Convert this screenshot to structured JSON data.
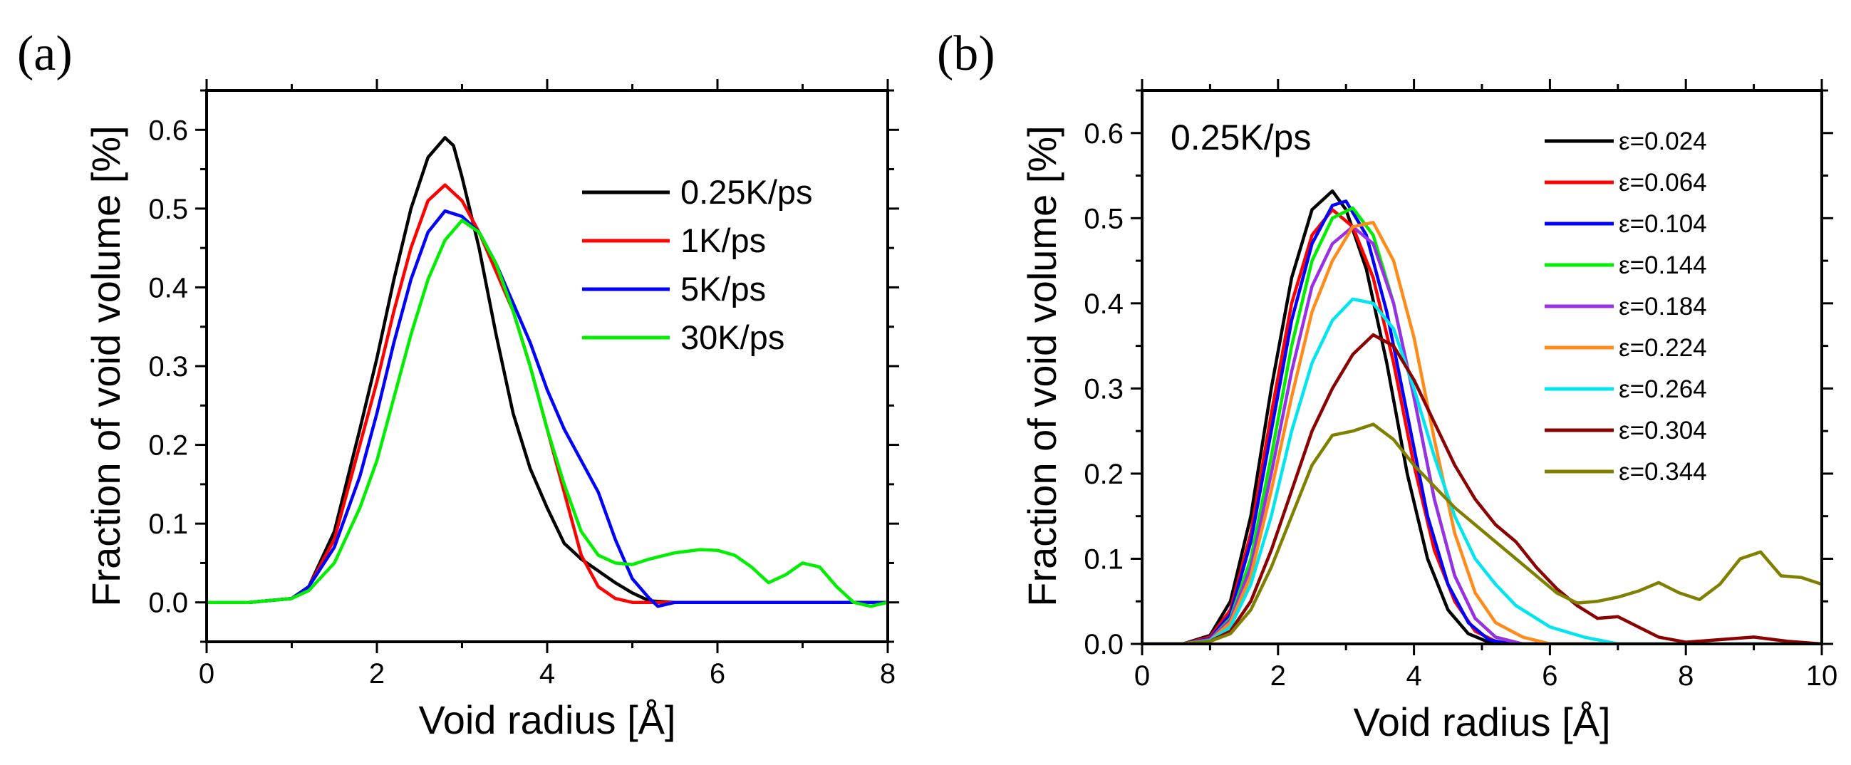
{
  "panels": [
    {
      "label": "(a)",
      "chart_data": {
        "type": "line",
        "title": "",
        "xlabel": "Void radius [Å]",
        "ylabel": "Fraction of void volume [%]",
        "xlim": [
          0,
          8
        ],
        "ylim": [
          -0.05,
          0.65
        ],
        "xticks": [
          0,
          2,
          4,
          6,
          8
        ],
        "yticks": [
          0.0,
          0.1,
          0.2,
          0.3,
          0.4,
          0.5,
          0.6
        ],
        "xtick_labels": [
          "0",
          "2",
          "4",
          "6",
          "8"
        ],
        "ytick_labels": [
          "0.0",
          "0.1",
          "0.2",
          "0.3",
          "0.4",
          "0.5",
          "0.6"
        ],
        "legend_position": "top-right",
        "series": [
          {
            "name": "0.25K/ps",
            "color": "#000000",
            "x": [
              0,
              0.5,
              1.0,
              1.2,
              1.5,
              1.8,
              2.0,
              2.2,
              2.4,
              2.6,
              2.8,
              2.9,
              3.0,
              3.2,
              3.4,
              3.6,
              3.8,
              4.0,
              4.2,
              4.4,
              4.6,
              4.8,
              5.0,
              5.2,
              5.5,
              6,
              7,
              8
            ],
            "y": [
              0,
              0,
              0.005,
              0.02,
              0.09,
              0.22,
              0.31,
              0.41,
              0.5,
              0.565,
              0.59,
              0.58,
              0.54,
              0.45,
              0.34,
              0.24,
              0.17,
              0.12,
              0.075,
              0.055,
              0.04,
              0.025,
              0.012,
              0.002,
              0,
              0,
              0,
              0
            ]
          },
          {
            "name": "1K/ps",
            "color": "#ff0000",
            "x": [
              0,
              0.5,
              1.0,
              1.2,
              1.5,
              1.8,
              2.0,
              2.2,
              2.4,
              2.6,
              2.8,
              3.0,
              3.2,
              3.4,
              3.6,
              3.8,
              4.0,
              4.2,
              4.4,
              4.6,
              4.8,
              5.0,
              5.2,
              5.5,
              6,
              7,
              8
            ],
            "y": [
              0,
              0,
              0.005,
              0.02,
              0.08,
              0.2,
              0.28,
              0.37,
              0.45,
              0.51,
              0.53,
              0.51,
              0.47,
              0.42,
              0.37,
              0.3,
              0.22,
              0.14,
              0.06,
              0.02,
              0.005,
              0,
              0,
              0,
              0,
              0,
              0
            ]
          },
          {
            "name": "5K/ps",
            "color": "#0000ff",
            "x": [
              0,
              0.5,
              1.0,
              1.2,
              1.5,
              1.8,
              2.0,
              2.2,
              2.4,
              2.6,
              2.8,
              3.0,
              3.2,
              3.4,
              3.6,
              3.8,
              4.0,
              4.2,
              4.4,
              4.6,
              4.8,
              5.0,
              5.2,
              5.3,
              5.5,
              6,
              7,
              8
            ],
            "y": [
              0,
              0,
              0.005,
              0.02,
              0.07,
              0.16,
              0.24,
              0.33,
              0.41,
              0.47,
              0.497,
              0.49,
              0.47,
              0.43,
              0.38,
              0.33,
              0.27,
              0.22,
              0.18,
              0.14,
              0.08,
              0.03,
              0.005,
              -0.005,
              0,
              0,
              0,
              0
            ]
          },
          {
            "name": "30K/ps",
            "color": "#00ee00",
            "x": [
              0,
              0.5,
              1.0,
              1.2,
              1.5,
              1.8,
              2.0,
              2.2,
              2.4,
              2.6,
              2.8,
              3.0,
              3.2,
              3.4,
              3.6,
              3.8,
              4.0,
              4.2,
              4.4,
              4.6,
              4.8,
              5.0,
              5.2,
              5.5,
              5.8,
              6.0,
              6.2,
              6.4,
              6.6,
              6.8,
              7.0,
              7.2,
              7.4,
              7.6,
              7.8,
              8.0
            ],
            "y": [
              0,
              0,
              0.005,
              0.015,
              0.05,
              0.12,
              0.18,
              0.26,
              0.34,
              0.41,
              0.46,
              0.485,
              0.47,
              0.43,
              0.37,
              0.3,
              0.22,
              0.15,
              0.09,
              0.06,
              0.05,
              0.048,
              0.055,
              0.063,
              0.067,
              0.066,
              0.06,
              0.045,
              0.025,
              0.035,
              0.05,
              0.045,
              0.02,
              0.0,
              -0.005,
              0
            ]
          }
        ]
      }
    },
    {
      "label": "(b)",
      "condition_label": "0.25K/ps",
      "chart_data": {
        "type": "line",
        "title": "",
        "xlabel": "Void radius [Å]",
        "ylabel": "Fraction of void volume [%]",
        "xlim": [
          0,
          10
        ],
        "ylim": [
          0,
          0.65
        ],
        "xticks": [
          0,
          2,
          4,
          6,
          8,
          10
        ],
        "yticks": [
          0.0,
          0.1,
          0.2,
          0.3,
          0.4,
          0.5,
          0.6
        ],
        "xtick_labels": [
          "0",
          "2",
          "4",
          "6",
          "8",
          "10"
        ],
        "ytick_labels": [
          "0.0",
          "0.1",
          "0.2",
          "0.3",
          "0.4",
          "0.5",
          "0.6"
        ],
        "legend_position": "top-right",
        "series": [
          {
            "name": "ε=0.024",
            "color": "#000000",
            "x": [
              0,
              0.6,
              1.0,
              1.3,
              1.6,
              1.9,
              2.2,
              2.5,
              2.8,
              3.0,
              3.3,
              3.6,
              3.9,
              4.2,
              4.5,
              4.8,
              5.1,
              5.4,
              10
            ],
            "y": [
              0,
              0,
              0.01,
              0.05,
              0.15,
              0.3,
              0.43,
              0.51,
              0.532,
              0.51,
              0.44,
              0.33,
              0.2,
              0.1,
              0.04,
              0.012,
              0.002,
              0,
              0
            ]
          },
          {
            "name": "ε=0.064",
            "color": "#ff0000",
            "x": [
              0,
              0.6,
              1.0,
              1.3,
              1.6,
              1.9,
              2.2,
              2.5,
              2.8,
              3.1,
              3.4,
              3.7,
              4.0,
              4.3,
              4.6,
              4.9,
              5.2,
              5.5,
              10
            ],
            "y": [
              0,
              0,
              0.008,
              0.04,
              0.13,
              0.27,
              0.4,
              0.48,
              0.51,
              0.49,
              0.43,
              0.33,
              0.21,
              0.11,
              0.05,
              0.015,
              0.003,
              0,
              0
            ]
          },
          {
            "name": "ε=0.104",
            "color": "#0000ff",
            "x": [
              0,
              0.6,
              1.0,
              1.3,
              1.6,
              1.9,
              2.2,
              2.5,
              2.8,
              3.0,
              3.3,
              3.6,
              3.9,
              4.2,
              4.5,
              4.8,
              5.1,
              5.4,
              10
            ],
            "y": [
              0,
              0,
              0.006,
              0.035,
              0.12,
              0.25,
              0.38,
              0.47,
              0.515,
              0.52,
              0.48,
              0.39,
              0.27,
              0.15,
              0.07,
              0.025,
              0.005,
              0,
              0
            ]
          },
          {
            "name": "ε=0.144",
            "color": "#00ee00",
            "x": [
              0,
              0.6,
              1.0,
              1.3,
              1.6,
              1.9,
              2.2,
              2.5,
              2.8,
              3.1,
              3.4,
              3.7,
              4.0,
              4.3,
              4.6,
              4.9,
              5.2,
              5.6,
              10
            ],
            "y": [
              0,
              0,
              0.005,
              0.03,
              0.1,
              0.22,
              0.35,
              0.45,
              0.5,
              0.512,
              0.48,
              0.4,
              0.29,
              0.17,
              0.08,
              0.03,
              0.008,
              0,
              0
            ]
          },
          {
            "name": "ε=0.184",
            "color": "#9a30e6",
            "x": [
              0,
              0.6,
              1.0,
              1.3,
              1.6,
              1.9,
              2.2,
              2.5,
              2.8,
              3.1,
              3.4,
              3.7,
              4.0,
              4.3,
              4.6,
              4.9,
              5.2,
              5.6,
              10
            ],
            "y": [
              0,
              0,
              0.005,
              0.028,
              0.09,
              0.2,
              0.32,
              0.42,
              0.47,
              0.49,
              0.47,
              0.4,
              0.29,
              0.17,
              0.08,
              0.03,
              0.008,
              0,
              0
            ]
          },
          {
            "name": "ε=0.224",
            "color": "#ff8c1a",
            "x": [
              0,
              0.6,
              1.0,
              1.3,
              1.6,
              1.9,
              2.2,
              2.5,
              2.8,
              3.1,
              3.4,
              3.7,
              4.0,
              4.3,
              4.6,
              4.9,
              5.2,
              5.6,
              6.0,
              10
            ],
            "y": [
              0,
              0,
              0.004,
              0.025,
              0.08,
              0.18,
              0.29,
              0.39,
              0.45,
              0.49,
              0.495,
              0.45,
              0.36,
              0.24,
              0.13,
              0.06,
              0.025,
              0.008,
              0,
              0
            ]
          },
          {
            "name": "ε=0.264",
            "color": "#00e5ee",
            "x": [
              0,
              0.6,
              1.0,
              1.3,
              1.6,
              1.9,
              2.2,
              2.5,
              2.8,
              3.1,
              3.4,
              3.7,
              4.0,
              4.3,
              4.6,
              4.9,
              5.2,
              5.5,
              6.0,
              6.5,
              7.0,
              10
            ],
            "y": [
              0,
              0,
              0.004,
              0.02,
              0.07,
              0.15,
              0.25,
              0.33,
              0.38,
              0.405,
              0.4,
              0.37,
              0.3,
              0.22,
              0.15,
              0.1,
              0.07,
              0.045,
              0.02,
              0.008,
              0,
              0
            ]
          },
          {
            "name": "ε=0.304",
            "color": "#8b0000",
            "x": [
              0,
              0.6,
              1.0,
              1.3,
              1.6,
              1.9,
              2.2,
              2.5,
              2.8,
              3.1,
              3.4,
              3.7,
              4.0,
              4.3,
              4.6,
              4.9,
              5.2,
              5.5,
              5.8,
              6.1,
              6.4,
              6.7,
              7.0,
              7.3,
              7.6,
              8.0,
              8.5,
              9.0,
              9.5,
              10
            ],
            "y": [
              0,
              0,
              0.003,
              0.015,
              0.05,
              0.11,
              0.18,
              0.25,
              0.3,
              0.34,
              0.363,
              0.35,
              0.31,
              0.26,
              0.21,
              0.17,
              0.14,
              0.12,
              0.09,
              0.065,
              0.045,
              0.03,
              0.032,
              0.02,
              0.008,
              0.002,
              0.005,
              0.008,
              0.003,
              0
            ]
          },
          {
            "name": "ε=0.344",
            "color": "#808000",
            "x": [
              0,
              0.6,
              1.0,
              1.3,
              1.6,
              1.9,
              2.2,
              2.5,
              2.8,
              3.1,
              3.4,
              3.7,
              4.0,
              4.3,
              4.6,
              4.9,
              5.2,
              5.5,
              5.8,
              6.1,
              6.4,
              6.7,
              7.0,
              7.3,
              7.6,
              7.9,
              8.2,
              8.5,
              8.8,
              9.1,
              9.4,
              9.7,
              10
            ],
            "y": [
              0,
              0,
              0.003,
              0.012,
              0.04,
              0.09,
              0.15,
              0.21,
              0.245,
              0.25,
              0.258,
              0.24,
              0.21,
              0.185,
              0.16,
              0.14,
              0.12,
              0.1,
              0.08,
              0.06,
              0.048,
              0.05,
              0.055,
              0.062,
              0.072,
              0.06,
              0.052,
              0.07,
              0.1,
              0.108,
              0.08,
              0.078,
              0.07
            ]
          }
        ]
      }
    }
  ]
}
